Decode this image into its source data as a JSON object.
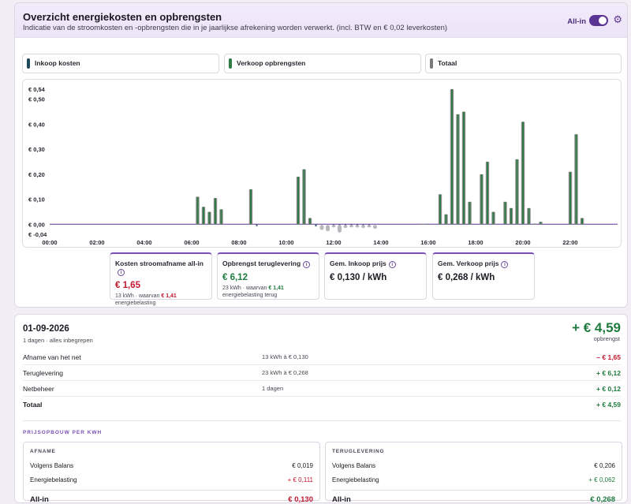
{
  "header": {
    "title": "Overzicht energiekosten en opbrengsten",
    "subtitle": "Indicatie van de stroomkosten en -opbrengsten die in je jaarlijkse afrekening worden verwerkt. (incl. BTW en € 0,02 leverkosten)",
    "allin_label": "All-in",
    "allin_on": true,
    "settings_icon": "gear-icon"
  },
  "legend": [
    {
      "label": "Inkoop kosten",
      "color": "#1f4a5a"
    },
    {
      "label": "Verkoop opbrengsten",
      "color": "#2f7a45"
    },
    {
      "label": "Totaal",
      "color": "#7a7a7a"
    }
  ],
  "chart_data": {
    "type": "bar",
    "x_ticks": [
      "00:00",
      "02:00",
      "04:00",
      "06:00",
      "08:00",
      "10:00",
      "12:00",
      "14:00",
      "16:00",
      "18:00",
      "20:00",
      "22:00"
    ],
    "y_ticks": [
      "€ 0,54",
      "€ 0,50",
      "€ 0,40",
      "€ 0,30",
      "€ 0,20",
      "€ 0,10",
      "€ 0,00",
      "€ -0,04"
    ],
    "ylim": [
      -0.04,
      0.54
    ],
    "series": [
      {
        "name": "Verkoop opbrengsten",
        "x": [
          6.25,
          6.5,
          6.75,
          7.0,
          7.25,
          8.5,
          10.5,
          10.75,
          11.0,
          15.75,
          16.0,
          16.5,
          16.75,
          17.0,
          17.25,
          17.5,
          17.75,
          18.25,
          18.5,
          18.75,
          19.25,
          19.5,
          19.75,
          20.0,
          20.25,
          20.5,
          20.75,
          22.0,
          22.25,
          22.5
        ],
        "values": [
          0.11,
          0.07,
          0.05,
          0.105,
          0.06,
          0.14,
          0.19,
          0.22,
          0.025,
          0.001,
          0.002,
          0.12,
          0.04,
          0.54,
          0.44,
          0.45,
          0.09,
          0.2,
          0.25,
          0.05,
          0.09,
          0.065,
          0.26,
          0.41,
          0.065,
          0.003,
          0.01,
          0.21,
          0.36,
          0.025
        ]
      },
      {
        "name": "Inkoop kosten",
        "x": [
          8.75,
          11.25,
          12.0,
          12.25,
          12.5,
          12.75,
          13.0,
          13.25,
          13.5
        ],
        "values": [
          -0.003,
          -0.004,
          -0.006,
          -0.008,
          -0.005,
          -0.004,
          -0.005,
          -0.003,
          -0.002
        ]
      },
      {
        "name": "Totaal",
        "x": [
          11.5,
          11.75,
          12.0,
          12.25,
          12.5,
          12.75,
          13.0,
          13.25,
          13.5,
          13.75
        ],
        "values": [
          -0.02,
          -0.025,
          -0.006,
          -0.03,
          -0.012,
          -0.008,
          -0.01,
          -0.012,
          -0.006,
          -0.015
        ]
      }
    ]
  },
  "stats": [
    {
      "label": "Kosten stroomafname all-in",
      "value": "€ 1,65",
      "tone": "red",
      "sub1_prefix": "13 kWh · waarvan ",
      "sub1_value": "€ 1,41",
      "sub2": "energiebelasting"
    },
    {
      "label": "Opbrengst teruglevering",
      "value": "€ 6,12",
      "tone": "green",
      "sub1_prefix": "23 kWh · waarvan ",
      "sub1_value": "€ 1,41",
      "sub2": "energiebelasting terug"
    },
    {
      "label": "Gem. Inkoop prijs",
      "value": "€ 0,130 / kWh",
      "tone": "dark"
    },
    {
      "label": "Gem. Verkoop prijs",
      "value": "€ 0,268 / kWh",
      "tone": "dark"
    }
  ],
  "summary": {
    "date": "01-09-2026",
    "date_sub": "1 dagen · alles inbegrepen",
    "total_big": "+ € 4,59",
    "total_big_sub": "opbrengst",
    "rows": [
      {
        "label": "Afname van het net",
        "detail": "13 kWh à € 0,130",
        "amount": "– € 1,65",
        "tone": "red"
      },
      {
        "label": "Teruglevering",
        "detail": "23 kWh à € 0,268",
        "amount": "+ € 6,12",
        "tone": "green"
      },
      {
        "label": "Netbeheer",
        "detail": "1 dagen",
        "amount": "+ € 0,12",
        "tone": "green"
      },
      {
        "label": "Totaal",
        "detail": "",
        "amount": "+ € 4,59",
        "tone": "green"
      }
    ],
    "breakdown_title": "PRIJSOPBOUW PER KWH",
    "afname": {
      "title": "AFNAME",
      "rows": [
        {
          "label": "Volgens Balans",
          "value": "€ 0,019",
          "tone": "dark"
        },
        {
          "label": "Energiebelasting",
          "value": "+ € 0,111",
          "tone": "red"
        }
      ],
      "total_label": "All-in",
      "total_value": "€ 0,130",
      "total_tone": "red"
    },
    "teruglevering": {
      "title": "TERUGLEVERING",
      "rows": [
        {
          "label": "Volgens Balans",
          "value": "€ 0,206",
          "tone": "dark"
        },
        {
          "label": "Energiebelasting",
          "value": "+ € 0,062",
          "tone": "green"
        }
      ],
      "total_label": "All-in",
      "total_value": "€ 0,268",
      "total_tone": "green"
    }
  }
}
